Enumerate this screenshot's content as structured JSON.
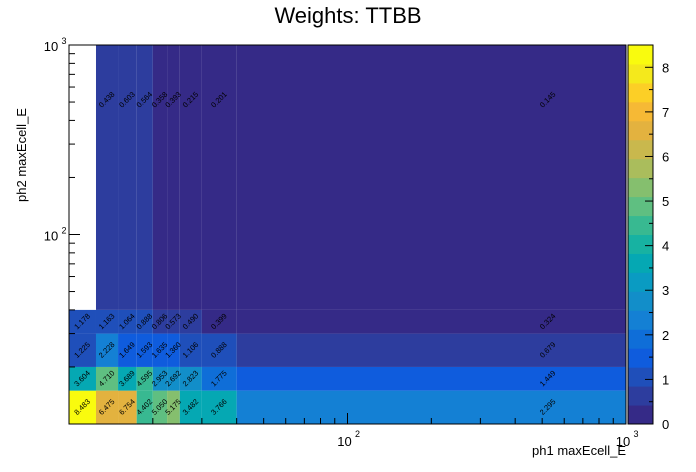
{
  "chart_data": {
    "type": "heatmap",
    "title": "Weights: TTBB",
    "xlabel": "ph1 maxEcell_E",
    "ylabel": "ph2 maxEcell_E",
    "x_scale": "log",
    "y_scale": "log",
    "xlim": [
      10,
      1000
    ],
    "ylim": [
      10,
      1000
    ],
    "x_ticks": [
      {
        "value": 100,
        "base": "10",
        "exp": "2"
      },
      {
        "value": 1000,
        "base": "10",
        "exp": "3"
      }
    ],
    "y_ticks": [
      {
        "value": 100,
        "base": "10",
        "exp": "2"
      },
      {
        "value": 1000,
        "base": "10",
        "exp": "3"
      }
    ],
    "x_edges": [
      10,
      12.5,
      15,
      17.5,
      20,
      22.5,
      25,
      30,
      40,
      1000
    ],
    "y_edges": [
      10,
      15,
      20,
      30,
      40,
      1000
    ],
    "z_range": [
      0,
      8.5
    ],
    "colorbar_ticks": [
      "0",
      "1",
      "2",
      "3",
      "4",
      "5",
      "6",
      "7",
      "8"
    ],
    "palette": [
      "#352a87",
      "#2d3d9e",
      "#1f4fba",
      "#0f5cdd",
      "#0f6ed8",
      "#1480d4",
      "#128ec9",
      "#0a9bc2",
      "#05a8b3",
      "#17b2a2",
      "#38b991",
      "#5fbf81",
      "#85bf6e",
      "#aabd5c",
      "#c9b84d",
      "#e3b23f",
      "#f6b935",
      "#fccf26",
      "#f4e91c",
      "#f9fb0e"
    ],
    "rows_bottom_to_top": [
      {
        "values": [
          8.483,
          6.475,
          6.754,
          4.402,
          5.05,
          5.175,
          3.482,
          3.766,
          2.295
        ],
        "labels": [
          "8.483",
          "6.475",
          "6.754",
          "4.402",
          "5.050",
          "5.175",
          "3.482",
          "3.766",
          "2.295"
        ]
      },
      {
        "values": [
          3.604,
          4.71,
          3.689,
          4.595,
          2.953,
          2.692,
          2.823,
          1.775,
          1.449
        ],
        "labels": [
          "3.604",
          "4.710",
          "3.689",
          "4.595",
          "2.953",
          "2.692",
          "2.823",
          "1.775",
          "1.449"
        ]
      },
      {
        "values": [
          1.225,
          2.228,
          1.649,
          1.593,
          1.635,
          1.36,
          1.106,
          0.888,
          0.679
        ],
        "labels": [
          "1.225",
          "2.228",
          "1.649",
          "1.593",
          "1.635",
          "1.360",
          "1.106",
          "0.888",
          "0.679"
        ]
      },
      {
        "values": [
          1.178,
          1.163,
          1.064,
          0.888,
          0.806,
          0.573,
          0.49,
          0.399,
          0.324
        ],
        "labels": [
          "1.178",
          "1.163",
          "1.064",
          "0.888",
          "0.806",
          "0.573",
          "0.490",
          "0.399",
          "0.324"
        ]
      },
      {
        "values": [
          null,
          0.438,
          0.603,
          0.564,
          0.358,
          0.393,
          0.215,
          0.201,
          0.145
        ],
        "labels": [
          "",
          "0.438",
          "0.603",
          "0.564",
          "0.358",
          "0.393",
          "0.215",
          "0.201",
          "0.145"
        ]
      }
    ]
  }
}
